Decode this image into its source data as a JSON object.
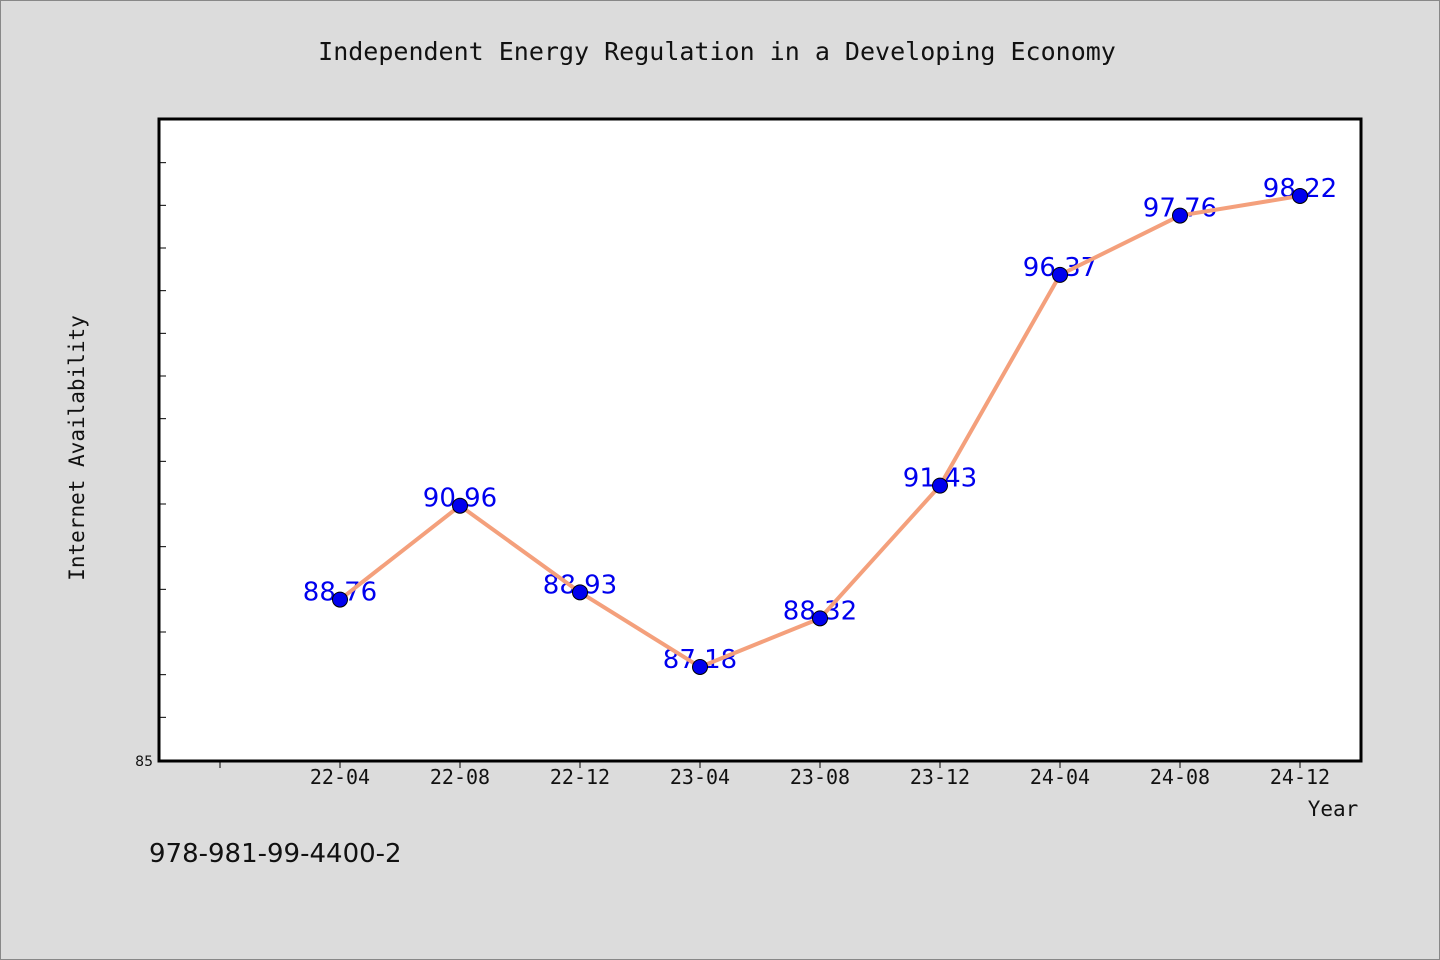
{
  "chart_data": {
    "type": "line",
    "title": "Independent Energy Regulation in a Developing Economy",
    "xlabel": "Year",
    "ylabel": "Internet Availability",
    "categories": [
      "22-04",
      "22-08",
      "22-12",
      "23-04",
      "23-08",
      "23-12",
      "24-04",
      "24-08",
      "24-12"
    ],
    "series": [
      {
        "values": [
          88.76,
          90.96,
          88.93,
          87.18,
          88.32,
          91.43,
          96.37,
          97.76,
          98.22
        ],
        "labels": [
          "88.76",
          "90.96",
          "88.93",
          "87.18",
          "88.32",
          "91.43",
          "96.37",
          "97.76",
          "98.22"
        ]
      }
    ],
    "ylim": [
      85,
      100
    ],
    "y_tick_labels": [
      "85"
    ],
    "grid": false,
    "legend": "none"
  },
  "footer": {
    "isbn": "978-981-99-4400-2"
  },
  "colors": {
    "background": "#dcdcdc",
    "plot_background": "#ffffff",
    "line": "#f4a07c",
    "marker": "#0000ee",
    "data_label": "#0000ee"
  }
}
